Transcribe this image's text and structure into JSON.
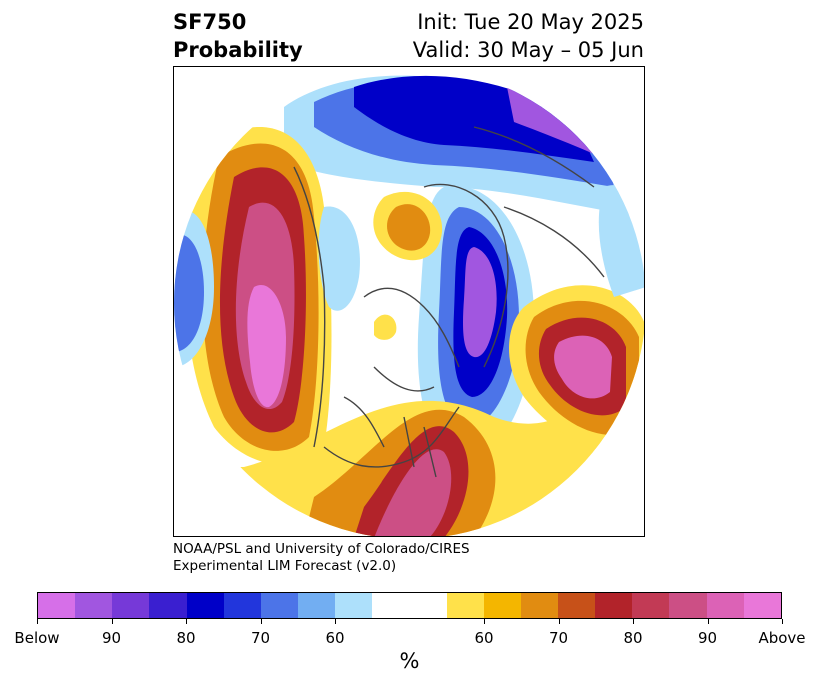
{
  "title": {
    "variable": "SF750",
    "subtitle": "Probability",
    "init": "Init: Tue 20 May 2025",
    "valid": "Valid: 30 May – 05 Jun"
  },
  "credit": {
    "line1": "NOAA/PSL and University of Colorado/CIRES",
    "line2": "Experimental LIM Forecast (v2.0)"
  },
  "colorbar": {
    "unit": "%",
    "colors": [
      "#d66fe8",
      "#a156e0",
      "#7639d8",
      "#3a1fd0",
      "#0000c8",
      "#2236dc",
      "#4c74e8",
      "#72aef2",
      "#ade0fb",
      "#ffffff",
      "#ffe14a",
      "#f4b600",
      "#e18c11",
      "#c75119",
      "#b2232a",
      "#c23a55",
      "#cc4f85",
      "#dc62b6",
      "#e977d9"
    ],
    "tick_labels": [
      "Below",
      "90",
      "80",
      "70",
      "60",
      "60",
      "70",
      "80",
      "90",
      "Above"
    ]
  },
  "map_colors": {
    "below_light": "#ade0fb",
    "below_mid": "#4c74e8",
    "below_strong": "#0000c8",
    "below_extreme": "#a156e0",
    "above_light": "#ffe14a",
    "above_mid": "#e18c11",
    "above_strong": "#b2232a",
    "above_extreme": "#e977d9",
    "coast": "#444444"
  }
}
